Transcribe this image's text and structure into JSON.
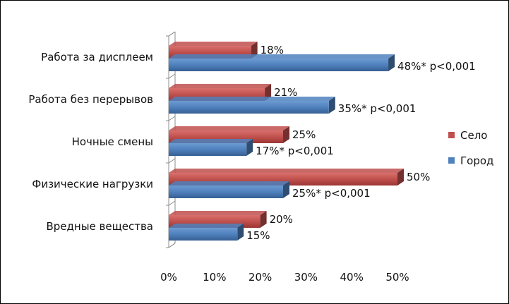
{
  "chart_data": {
    "type": "bar",
    "orientation": "horizontal",
    "three_d": true,
    "title": "",
    "xlabel": "",
    "ylabel": "",
    "xlim": [
      0,
      50
    ],
    "xticks": [
      "0%",
      "10%",
      "20%",
      "30%",
      "40%",
      "50%"
    ],
    "grid": false,
    "legend_position": "right",
    "categories": [
      "Работа за дисплеем",
      "Работа без перерывов",
      "Ночные смены",
      "Физические нагрузки",
      "Вредные вещества"
    ],
    "series": [
      {
        "name": "Село",
        "color": "#c0504d",
        "values": [
          18,
          21,
          25,
          50,
          20
        ],
        "labels": [
          "18%",
          "21%",
          "25%",
          "50%",
          "20%"
        ]
      },
      {
        "name": "Город",
        "color": "#4f81bd",
        "values": [
          48,
          35,
          17,
          25,
          15
        ],
        "labels": [
          "48%* p<0,001",
          "35%* p<0,001",
          "17%* p<0,001",
          "25%* p<0,001",
          "15%"
        ]
      }
    ]
  }
}
